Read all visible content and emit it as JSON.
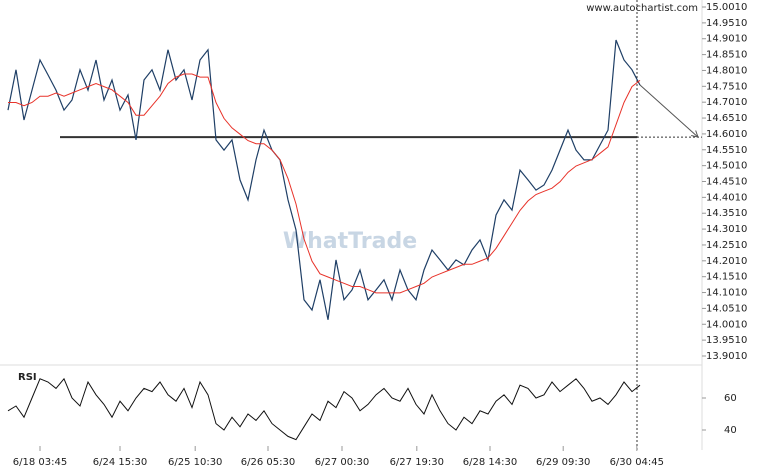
{
  "chart_data": [
    {
      "type": "line",
      "site": "www.autochartist.com",
      "watermark": "WhatTrade",
      "xlim": [
        -1,
        86.75
      ],
      "ylim": [
        13.8726,
        15.0231
      ],
      "xticks": [
        {
          "value": 4,
          "label": "6/18 03:45"
        },
        {
          "value": 14,
          "label": "6/24 15:30"
        },
        {
          "value": 23.4,
          "label": "6/25 10:30"
        },
        {
          "value": 32.5,
          "label": "6/26 05:30"
        },
        {
          "value": 41.75,
          "label": "6/27 00:30"
        },
        {
          "value": 51.1,
          "label": "6/27 19:30"
        },
        {
          "value": 60.25,
          "label": "6/28 14:30"
        },
        {
          "value": 69.4,
          "label": "6/29 09:30"
        },
        {
          "value": 78.6,
          "label": "6/30 04:45"
        }
      ],
      "yticks": [
        {
          "value": 13.901,
          "label": "13.9010"
        },
        {
          "value": 13.951,
          "label": "13.9510"
        },
        {
          "value": 14.001,
          "label": "14.0010"
        },
        {
          "value": 14.051,
          "label": "14.0510"
        },
        {
          "value": 14.101,
          "label": "14.1010"
        },
        {
          "value": 14.151,
          "label": "14.1510"
        },
        {
          "value": 14.201,
          "label": "14.2010"
        },
        {
          "value": 14.251,
          "label": "14.2510"
        },
        {
          "value": 14.301,
          "label": "14.3010"
        },
        {
          "value": 14.351,
          "label": "14.3510"
        },
        {
          "value": 14.401,
          "label": "14.4010"
        },
        {
          "value": 14.451,
          "label": "14.4510"
        },
        {
          "value": 14.501,
          "label": "14.5010"
        },
        {
          "value": 14.551,
          "label": "14.5510"
        },
        {
          "value": 14.601,
          "label": "14.6010"
        },
        {
          "value": 14.651,
          "label": "14.6510"
        },
        {
          "value": 14.701,
          "label": "14.7010"
        },
        {
          "value": 14.751,
          "label": "14.7510"
        },
        {
          "value": 14.801,
          "label": "14.8010"
        },
        {
          "value": 14.851,
          "label": "14.8510"
        },
        {
          "value": 14.901,
          "label": "14.9010"
        },
        {
          "value": 14.951,
          "label": "14.9510"
        },
        {
          "value": 15.001,
          "label": "15.0010"
        }
      ],
      "level": 14.591,
      "level_color": "#333333",
      "forecast_color": "#555555",
      "series": [
        {
          "name": "Price",
          "color": "#1f3f66",
          "values": [
            14.676,
            14.803,
            14.645,
            14.739,
            14.834,
            14.787,
            14.739,
            14.676,
            14.708,
            14.803,
            14.739,
            14.834,
            14.708,
            14.771,
            14.676,
            14.724,
            14.582,
            14.771,
            14.803,
            14.739,
            14.866,
            14.771,
            14.803,
            14.708,
            14.834,
            14.866,
            14.582,
            14.55,
            14.582,
            14.456,
            14.393,
            14.519,
            14.613,
            14.55,
            14.519,
            14.393,
            14.298,
            14.078,
            14.046,
            14.141,
            14.015,
            14.204,
            14.078,
            14.109,
            14.172,
            14.078,
            14.109,
            14.141,
            14.078,
            14.172,
            14.109,
            14.078,
            14.172,
            14.235,
            14.204,
            14.172,
            14.204,
            14.188,
            14.235,
            14.267,
            14.204,
            14.345,
            14.393,
            14.361,
            14.487,
            14.456,
            14.424,
            14.44,
            14.487,
            14.55,
            14.613,
            14.55,
            14.519,
            14.519,
            14.566,
            14.613,
            14.897,
            14.834,
            14.803,
            14.755
          ]
        },
        {
          "name": "MA",
          "color": "#e8332a",
          "values": [
            14.7,
            14.7,
            14.69,
            14.7,
            14.72,
            14.72,
            14.73,
            14.72,
            14.73,
            14.74,
            14.75,
            14.76,
            14.75,
            14.74,
            14.72,
            14.7,
            14.66,
            14.66,
            14.69,
            14.72,
            14.76,
            14.78,
            14.79,
            14.79,
            14.78,
            14.78,
            14.7,
            14.65,
            14.62,
            14.6,
            14.58,
            14.57,
            14.57,
            14.55,
            14.52,
            14.46,
            14.38,
            14.27,
            14.2,
            14.16,
            14.15,
            14.14,
            14.13,
            14.12,
            14.12,
            14.11,
            14.1,
            14.1,
            14.1,
            14.1,
            14.11,
            14.12,
            14.13,
            14.15,
            14.16,
            14.17,
            14.18,
            14.19,
            14.19,
            14.2,
            14.21,
            14.24,
            14.28,
            14.32,
            14.36,
            14.39,
            14.41,
            14.42,
            14.43,
            14.45,
            14.48,
            14.5,
            14.51,
            14.52,
            14.54,
            14.56,
            14.63,
            14.7,
            14.75,
            14.77
          ]
        }
      ]
    },
    {
      "type": "line",
      "title": "RSI",
      "ylim": [
        30,
        80
      ],
      "yticks": [
        40,
        60
      ],
      "series": [
        {
          "color": "#111111",
          "values": [
            52,
            55,
            48,
            60,
            72,
            70,
            66,
            72,
            60,
            55,
            70,
            62,
            56,
            48,
            58,
            52,
            60,
            66,
            64,
            70,
            62,
            58,
            66,
            54,
            70,
            62,
            44,
            40,
            48,
            42,
            50,
            46,
            52,
            44,
            40,
            36,
            34,
            42,
            50,
            46,
            58,
            54,
            64,
            60,
            52,
            56,
            62,
            66,
            60,
            58,
            66,
            56,
            50,
            62,
            52,
            44,
            40,
            48,
            44,
            52,
            50,
            58,
            62,
            56,
            68,
            66,
            60,
            62,
            70,
            64,
            68,
            72,
            66,
            58,
            60,
            56,
            62,
            70,
            64,
            68
          ]
        }
      ]
    }
  ]
}
